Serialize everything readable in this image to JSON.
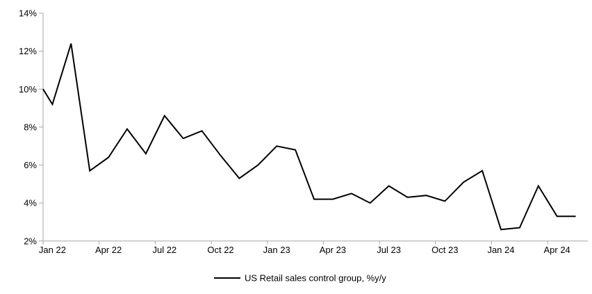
{
  "chart_data": {
    "type": "line",
    "title": "",
    "legend_label": "US Retail sales control group, %y/y",
    "legend_position": "bottom-center",
    "grid": false,
    "series_color": "#000000",
    "axis_color": "#a6a6a6",
    "text_color": "#000000",
    "ylim": [
      2,
      14
    ],
    "y_tick_labels": [
      "2%",
      "4%",
      "6%",
      "8%",
      "10%",
      "12%",
      "14%"
    ],
    "x_tick_labels": [
      "Jan 22",
      "Apr 22",
      "Jul 22",
      "Oct 22",
      "Jan 23",
      "Apr 23",
      "Jul 23",
      "Oct 23",
      "Jan 24",
      "Apr 24"
    ],
    "x_tick_interval_months": 3,
    "edge_start_value": 10.0,
    "categories": [
      "Jan 22",
      "Feb 22",
      "Mar 22",
      "Apr 22",
      "May 22",
      "Jun 22",
      "Jul 22",
      "Aug 22",
      "Sep 22",
      "Oct 22",
      "Nov 22",
      "Dec 22",
      "Jan 23",
      "Feb 23",
      "Mar 23",
      "Apr 23",
      "May 23",
      "Jun 23",
      "Jul 23",
      "Aug 23",
      "Sep 23",
      "Oct 23",
      "Nov 23",
      "Dec 23",
      "Jan 24",
      "Feb 24",
      "Mar 24",
      "Apr 24",
      "May 24"
    ],
    "values": [
      9.2,
      12.4,
      5.7,
      6.4,
      7.9,
      6.6,
      8.6,
      7.4,
      7.8,
      6.5,
      5.3,
      6.0,
      7.0,
      6.8,
      4.2,
      4.2,
      4.5,
      4.0,
      4.9,
      4.3,
      4.4,
      4.1,
      5.1,
      5.7,
      2.6,
      2.7,
      4.9,
      3.3,
      3.3
    ]
  }
}
